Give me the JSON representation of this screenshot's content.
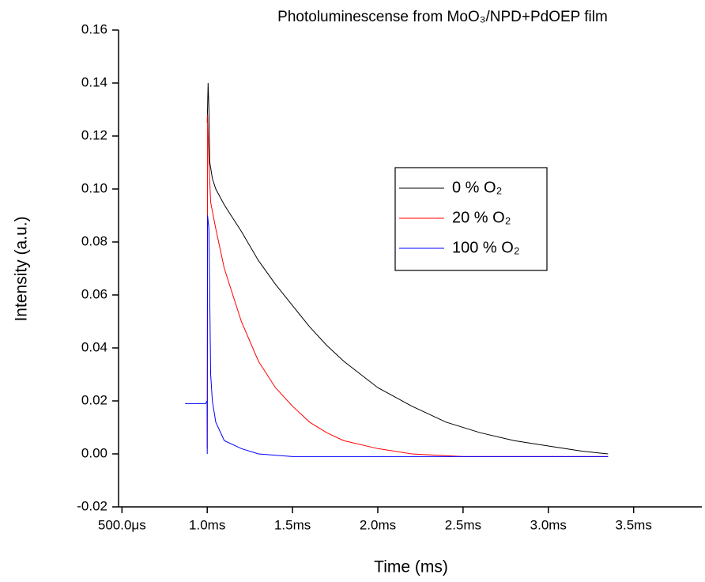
{
  "chart_data": {
    "type": "line",
    "title": "Photoluminescense from MoO₃/NPD+PdOEP film",
    "x_label": "Time (ms)",
    "y_label": "Intensity (a.u.)",
    "xlim": [
      0.48,
      3.9
    ],
    "ylim": [
      -0.02,
      0.16
    ],
    "xticks": [
      {
        "value": 0.5,
        "label": "500.0μs"
      },
      {
        "value": 1.0,
        "label": "1.0ms"
      },
      {
        "value": 1.5,
        "label": "1.5ms"
      },
      {
        "value": 2.0,
        "label": "2.0ms"
      },
      {
        "value": 2.5,
        "label": "2.5ms"
      },
      {
        "value": 3.0,
        "label": "3.0ms"
      },
      {
        "value": 3.5,
        "label": "3.5ms"
      }
    ],
    "yticks": [
      {
        "value": -0.02,
        "label": "-0.02"
      },
      {
        "value": 0,
        "label": "0.00"
      },
      {
        "value": 0.02,
        "label": "0.02"
      },
      {
        "value": 0.04,
        "label": "0.04"
      },
      {
        "value": 0.06,
        "label": "0.06"
      },
      {
        "value": 0.08,
        "label": "0.08"
      },
      {
        "value": 0.1,
        "label": "0.10"
      },
      {
        "value": 0.12,
        "label": "0.12"
      },
      {
        "value": 0.14,
        "label": "0.14"
      },
      {
        "value": 0.16,
        "label": "0.16"
      }
    ],
    "series": [
      {
        "name": "0 % O₂",
        "color": "#000000",
        "x": [
          1.0,
          1.005,
          1.01,
          1.015,
          1.03,
          1.05,
          1.1,
          1.2,
          1.3,
          1.4,
          1.5,
          1.6,
          1.7,
          1.8,
          1.9,
          2.0,
          2.2,
          2.4,
          2.6,
          2.8,
          3.0,
          3.2,
          3.35
        ],
        "values": [
          0.125,
          0.14,
          0.13,
          0.11,
          0.104,
          0.1,
          0.094,
          0.084,
          0.073,
          0.064,
          0.056,
          0.048,
          0.041,
          0.035,
          0.03,
          0.025,
          0.018,
          0.012,
          0.008,
          0.005,
          0.003,
          0.001,
          0.0
        ]
      },
      {
        "name": "20 % O₂",
        "color": "#ff0000",
        "x": [
          1.0,
          1.002,
          1.01,
          1.02,
          1.05,
          1.1,
          1.2,
          1.3,
          1.4,
          1.5,
          1.6,
          1.7,
          1.8,
          2.0,
          2.2,
          2.5,
          3.35
        ],
        "values": [
          0.002,
          0.128,
          0.11,
          0.095,
          0.085,
          0.07,
          0.05,
          0.035,
          0.025,
          0.018,
          0.012,
          0.008,
          0.005,
          0.002,
          0.0,
          -0.001,
          -0.001
        ]
      },
      {
        "name": "100 % O₂",
        "color": "#0000ff",
        "x": [
          0.87,
          0.99,
          0.999,
          1.0,
          1.002,
          1.01,
          1.02,
          1.03,
          1.05,
          1.1,
          1.2,
          1.3,
          1.5,
          2.0,
          3.35
        ],
        "values": [
          0.019,
          0.019,
          0.02,
          0.0,
          0.09,
          0.085,
          0.03,
          0.02,
          0.012,
          0.005,
          0.002,
          0.0,
          -0.001,
          -0.001,
          -0.001
        ]
      }
    ]
  }
}
